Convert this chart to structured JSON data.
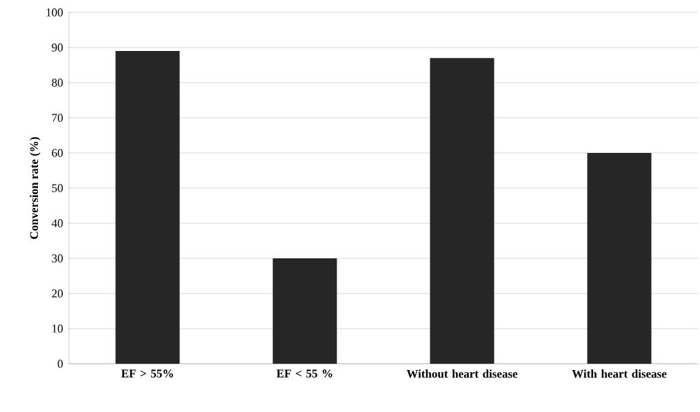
{
  "chart_data": {
    "type": "bar",
    "ylabel": "Conversion rate (%)",
    "categories": [
      "EF > 55%",
      "EF < 55 %",
      "Without heart disease",
      "With heart disease"
    ],
    "values": [
      89,
      30,
      87,
      60
    ],
    "color": "#262626",
    "ylim": [
      0,
      100
    ],
    "yticks": [
      0,
      10,
      20,
      30,
      40,
      50,
      60,
      70,
      80,
      90,
      100
    ],
    "grid": "y"
  }
}
